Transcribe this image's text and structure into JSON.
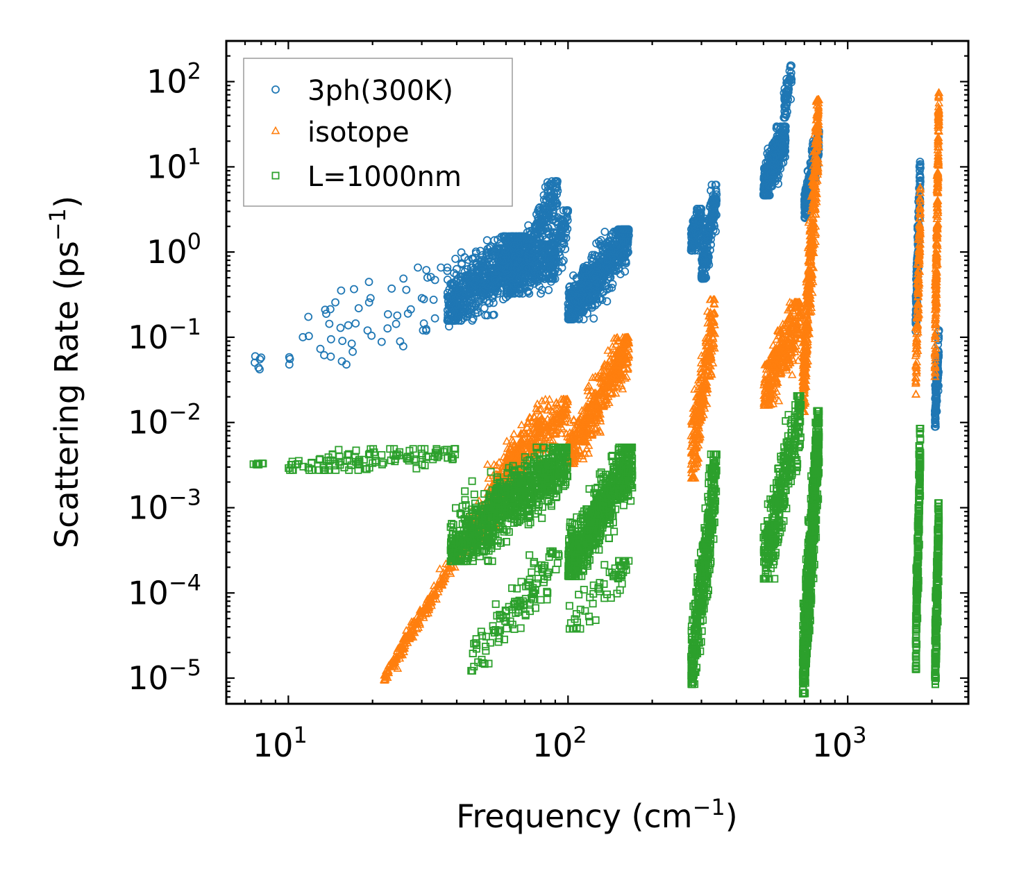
{
  "chart_data": {
    "type": "scatter",
    "xscale": "log",
    "yscale": "log",
    "xlim": [
      6,
      2700
    ],
    "ylim": [
      5e-06,
      300
    ],
    "xlabel": "Frequency (cm",
    "xlabel_sup": "−1",
    "xlabel_end": ")",
    "ylabel": "Scattering Rate (ps",
    "ylabel_sup": "−1",
    "ylabel_end": ")",
    "x_ticks": [
      {
        "value": 10,
        "base": "10",
        "exp": "1"
      },
      {
        "value": 100,
        "base": "10",
        "exp": "2"
      },
      {
        "value": 1000,
        "base": "10",
        "exp": "3"
      }
    ],
    "y_ticks": [
      {
        "value": 1e-05,
        "base": "10",
        "exp": "−5"
      },
      {
        "value": 0.0001,
        "base": "10",
        "exp": "−4"
      },
      {
        "value": 0.001,
        "base": "10",
        "exp": "−3"
      },
      {
        "value": 0.01,
        "base": "10",
        "exp": "−2"
      },
      {
        "value": 0.1,
        "base": "10",
        "exp": "−1"
      },
      {
        "value": 1,
        "base": "10",
        "exp": "0"
      },
      {
        "value": 10,
        "base": "10",
        "exp": "1"
      },
      {
        "value": 100,
        "base": "10",
        "exp": "2"
      }
    ],
    "legend_position": "top-left",
    "series": [
      {
        "name": "3ph(300K)",
        "marker": "circle",
        "color": "#1f77b4",
        "segments": [
          {
            "x": [
              7.5,
              8.0
            ],
            "y": [
              0.05,
              0.065
            ],
            "n": 6,
            "scatter": 0.25
          },
          {
            "x": [
              10,
              40
            ],
            "y": [
              0.07,
              0.45
            ],
            "n": 60,
            "scatter": 0.55
          },
          {
            "x": [
              37,
              70
            ],
            "y": [
              0.2,
              1.2
            ],
            "n": 700,
            "scatter": 0.35
          },
          {
            "x": [
              60,
              90
            ],
            "y": [
              0.4,
              1.0
            ],
            "n": 300,
            "scatter": 0.3
          },
          {
            "x": [
              70,
              92
            ],
            "y": [
              0.8,
              5.5
            ],
            "n": 200,
            "scatter": 0.3
          },
          {
            "x": [
              85,
              100
            ],
            "y": [
              0.6,
              2.5
            ],
            "n": 120,
            "scatter": 0.3
          },
          {
            "x": [
              100,
              165
            ],
            "y": [
              0.2,
              1.5
            ],
            "n": 700,
            "scatter": 0.3
          },
          {
            "x": [
              275,
              300
            ],
            "y": [
              1.2,
              2.8
            ],
            "n": 150,
            "scatter": 0.2
          },
          {
            "x": [
              300,
              340
            ],
            "y": [
              0.6,
              5.0
            ],
            "n": 200,
            "scatter": 0.3
          },
          {
            "x": [
              500,
              600
            ],
            "y": [
              5.5,
              25.0
            ],
            "n": 400,
            "scatter": 0.25
          },
          {
            "x": [
              590,
              630
            ],
            "y": [
              45.0,
              130.0
            ],
            "n": 60,
            "scatter": 0.25
          },
          {
            "x": [
              700,
              790
            ],
            "y": [
              3.0,
              22.0
            ],
            "n": 250,
            "scatter": 0.25
          },
          {
            "x": [
              1750,
              1820
            ],
            "y": [
              0.15,
              9.0
            ],
            "n": 150,
            "scatter": 0.35
          },
          {
            "x": [
              2050,
              2120
            ],
            "y": [
              0.011,
              0.1
            ],
            "n": 120,
            "scatter": 0.3
          }
        ]
      },
      {
        "name": "isotope",
        "marker": "triangle",
        "color": "#ff7f0e",
        "segments": [
          {
            "x": [
              22,
              45
            ],
            "y": [
              1e-05,
              0.0005
            ],
            "n": 250,
            "scatter": 0.1
          },
          {
            "x": [
              45,
              70
            ],
            "y": [
              0.0005,
              0.005
            ],
            "n": 250,
            "scatter": 0.3
          },
          {
            "x": [
              60,
              100
            ],
            "y": [
              0.003,
              0.015
            ],
            "n": 300,
            "scatter": 0.3
          },
          {
            "x": [
              100,
              165
            ],
            "y": [
              0.004,
              0.08
            ],
            "n": 500,
            "scatter": 0.3
          },
          {
            "x": [
              275,
              335
            ],
            "y": [
              0.003,
              0.2
            ],
            "n": 300,
            "scatter": 0.45
          },
          {
            "x": [
              500,
              680
            ],
            "y": [
              0.02,
              0.2
            ],
            "n": 350,
            "scatter": 0.35
          },
          {
            "x": [
              690,
              790
            ],
            "y": [
              0.02,
              40.0
            ],
            "n": 500,
            "scatter": 0.6
          },
          {
            "x": [
              1750,
              1820
            ],
            "y": [
              0.03,
              4.0
            ],
            "n": 150,
            "scatter": 0.5
          },
          {
            "x": [
              2050,
              2120
            ],
            "y": [
              0.05,
              50.0
            ],
            "n": 250,
            "scatter": 0.55
          }
        ]
      },
      {
        "name": "L=1000nm",
        "marker": "square",
        "color": "#2ca02c",
        "segments": [
          {
            "x": [
              7.5,
              8.2
            ],
            "y": [
              0.0032,
              0.0033
            ],
            "n": 8,
            "scatter": 0.01
          },
          {
            "x": [
              10,
              40
            ],
            "y": [
              0.003,
              0.0045
            ],
            "n": 120,
            "scatter": 0.12
          },
          {
            "x": [
              38,
              100
            ],
            "y": [
              0.0003,
              0.004
            ],
            "n": 900,
            "scatter": 0.35
          },
          {
            "x": [
              45,
              95
            ],
            "y": [
              1.5e-05,
              0.0003
            ],
            "n": 120,
            "scatter": 0.3
          },
          {
            "x": [
              100,
              170
            ],
            "y": [
              0.0002,
              0.004
            ],
            "n": 700,
            "scatter": 0.35
          },
          {
            "x": [
              100,
              165
            ],
            "y": [
              4.5e-05,
              0.0002
            ],
            "n": 60,
            "scatter": 0.25
          },
          {
            "x": [
              275,
              340
            ],
            "y": [
              1.2e-05,
              0.003
            ],
            "n": 400,
            "scatter": 0.5
          },
          {
            "x": [
              500,
              680
            ],
            "y": [
              0.0002,
              0.015
            ],
            "n": 350,
            "scatter": 0.45
          },
          {
            "x": [
              690,
              790
            ],
            "y": [
              1e-05,
              0.009
            ],
            "n": 700,
            "scatter": 0.6
          },
          {
            "x": [
              1750,
              1820
            ],
            "y": [
              1.8e-05,
              0.006
            ],
            "n": 250,
            "scatter": 0.5
          },
          {
            "x": [
              2050,
              2120
            ],
            "y": [
              1.2e-05,
              0.0008
            ],
            "n": 250,
            "scatter": 0.5
          }
        ]
      }
    ]
  }
}
